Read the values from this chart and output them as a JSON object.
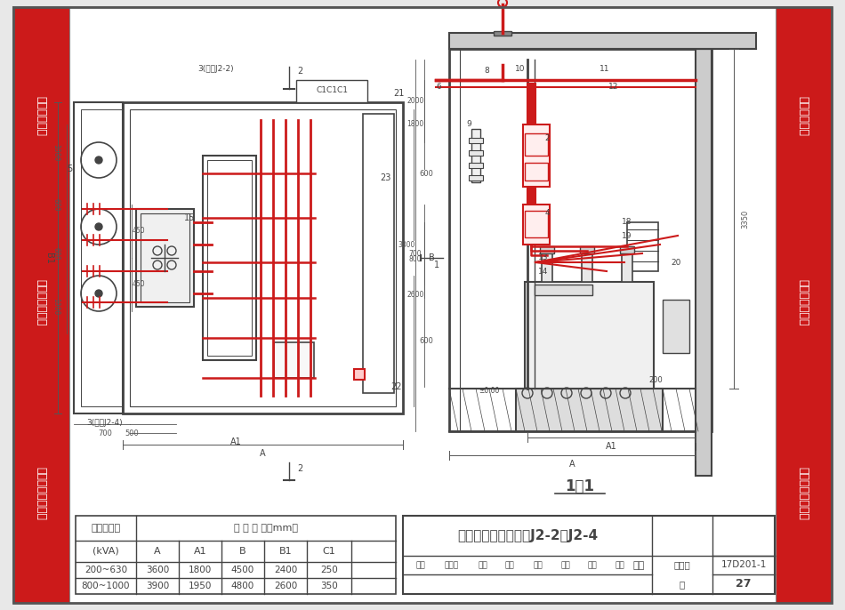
{
  "bg_color": "#e8e8e8",
  "page_bg": "#ffffff",
  "red_color": "#cc1a1a",
  "line_color": "#444444",
  "dim_color": "#555555",
  "title": "变压器室电气布置图J2-2、J2-4",
  "figure_num": "17D201-1",
  "page_num": "27",
  "table_subheaders": [
    "(kVA)",
    "A",
    "A1",
    "B",
    "B1",
    "C1"
  ],
  "table_row1": [
    "200~630",
    "3600",
    "1800",
    "4500",
    "2400",
    "250"
  ],
  "table_row2": [
    "800~1000",
    "3900",
    "1950",
    "4800",
    "2600",
    "350"
  ]
}
